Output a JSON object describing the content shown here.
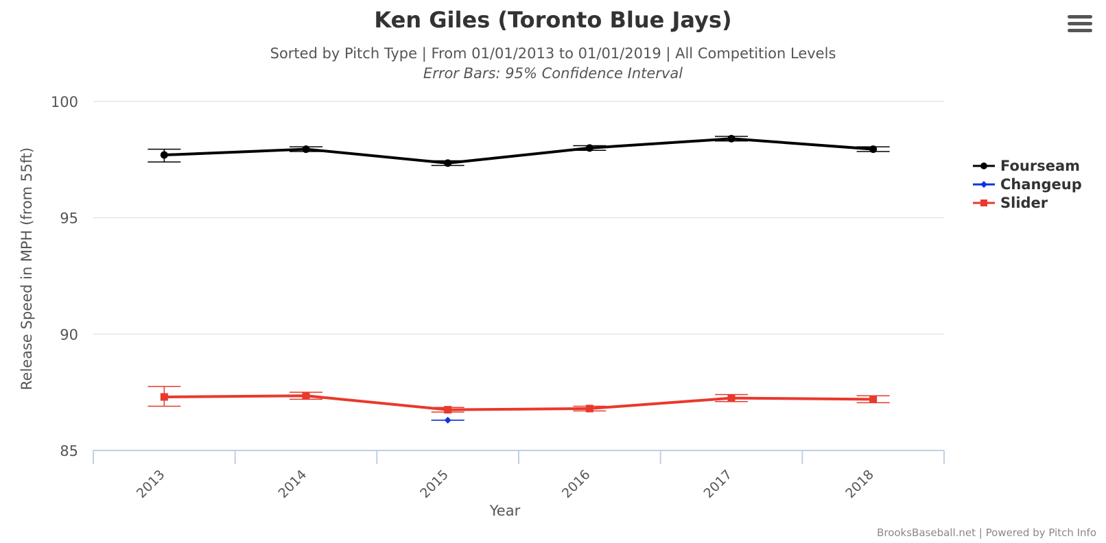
{
  "chart_data": {
    "type": "line",
    "title": "Ken Giles (Toronto Blue Jays)",
    "subtitle": "Sorted by Pitch Type | From 01/01/2013 to 01/01/2019 | All Competition Levels",
    "subtitle2": "Error Bars: 95% Confidence Interval",
    "xlabel": "Year",
    "ylabel": "Release Speed in MPH (from 55ft)",
    "categories": [
      "2013",
      "2014",
      "2015",
      "2016",
      "2017",
      "2018"
    ],
    "yticks": [
      "85",
      "90",
      "95",
      "100"
    ],
    "ylim": [
      85,
      100
    ],
    "grid": true,
    "legend_position": "right",
    "series": [
      {
        "name": "Fourseam",
        "color": "#000000",
        "marker": "circle",
        "values": [
          97.7,
          97.95,
          97.35,
          98.0,
          98.4,
          97.95
        ],
        "err_low": [
          97.4,
          97.85,
          97.25,
          97.9,
          98.3,
          97.85
        ],
        "err_high": [
          97.95,
          98.05,
          97.45,
          98.1,
          98.5,
          98.05
        ]
      },
      {
        "name": "Changeup",
        "color": "#1033e0",
        "marker": "diamond",
        "values": [
          null,
          null,
          86.3,
          null,
          null,
          null
        ],
        "err_low": [
          null,
          null,
          86.3,
          null,
          null,
          null
        ],
        "err_high": [
          null,
          null,
          86.3,
          null,
          null,
          null
        ]
      },
      {
        "name": "Slider",
        "color": "#e8392c",
        "marker": "square",
        "values": [
          87.3,
          87.35,
          86.75,
          86.8,
          87.25,
          87.2
        ],
        "err_low": [
          86.9,
          87.2,
          86.65,
          86.7,
          87.1,
          87.05
        ],
        "err_high": [
          87.75,
          87.5,
          86.85,
          86.9,
          87.4,
          87.35
        ]
      }
    ]
  },
  "credits": "BrooksBaseball.net | Powered by Pitch Info",
  "menu": {
    "icon": "hamburger-menu-icon"
  }
}
